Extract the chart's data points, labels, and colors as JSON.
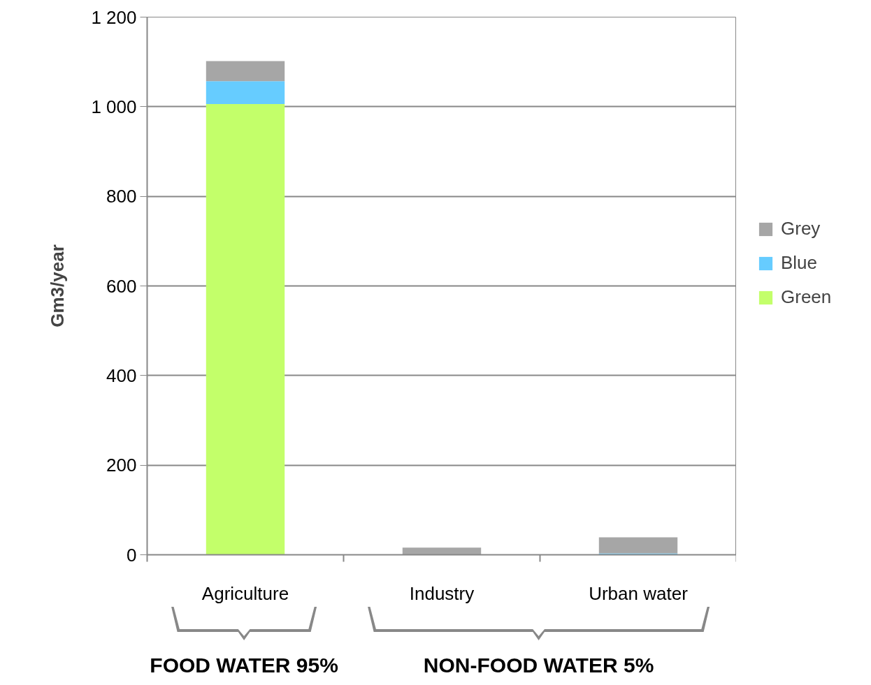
{
  "chart_data": {
    "type": "bar",
    "stacked": true,
    "ylabel": "Gm3/year",
    "categories": [
      "Agriculture",
      "Industry",
      "Urban water"
    ],
    "series": [
      {
        "name": "Green",
        "color": "#c3ff6a",
        "values": [
          1006,
          0,
          0
        ]
      },
      {
        "name": "Blue",
        "color": "#66ccff",
        "values": [
          51,
          0,
          3
        ]
      },
      {
        "name": "Grey",
        "color": "#a6a6a6",
        "values": [
          45,
          16,
          36
        ]
      }
    ],
    "ylim": [
      0,
      1200
    ],
    "yticks": [
      0,
      200,
      400,
      600,
      800,
      {
        "value": 1000,
        "label": "1 000"
      },
      {
        "value": 1200,
        "label": "1 200"
      }
    ],
    "grid": "y",
    "legend": "right",
    "annotations": [
      "FOOD WATER 95%",
      "NON-FOOD WATER 5%"
    ]
  }
}
